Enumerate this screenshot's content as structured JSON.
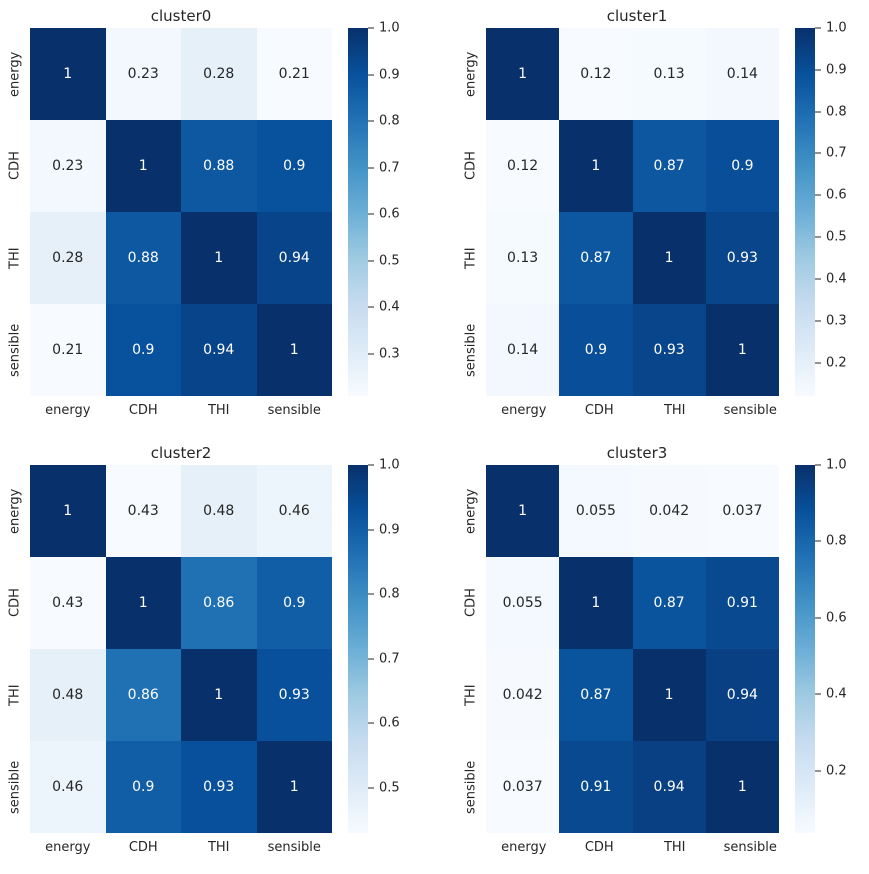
{
  "page": {
    "background": "#ffffff",
    "figure_width": 869,
    "figure_height": 874
  },
  "colors": {
    "colormap": "Blues",
    "blues_stops": [
      "#f7fbff",
      "#deebf7",
      "#c6dbef",
      "#9ecae1",
      "#6baed6",
      "#4292c6",
      "#2171b5",
      "#08519c",
      "#08306b"
    ],
    "annotation_on_dark": "#ffffff",
    "annotation_on_light": "#262626",
    "axis_text": "#262626"
  },
  "chart_data": [
    {
      "type": "heatmap",
      "title": "cluster0",
      "x_categories": [
        "energy",
        "CDH",
        "THI",
        "sensible"
      ],
      "y_categories": [
        "energy",
        "CDH",
        "THI",
        "sensible"
      ],
      "matrix": [
        [
          1,
          0.23,
          0.28,
          0.21
        ],
        [
          0.23,
          1,
          0.88,
          0.9
        ],
        [
          0.28,
          0.88,
          1,
          0.94
        ],
        [
          0.21,
          0.9,
          0.94,
          1
        ]
      ],
      "vmin": 0.21,
      "vmax": 1.0,
      "colorbar_ticks": [
        "1.0",
        "0.9",
        "0.8",
        "0.7",
        "0.6",
        "0.5",
        "0.4",
        "0.3"
      ],
      "colorbar_position": "right",
      "grid": false
    },
    {
      "type": "heatmap",
      "title": "cluster1",
      "x_categories": [
        "energy",
        "CDH",
        "THI",
        "sensible"
      ],
      "y_categories": [
        "energy",
        "CDH",
        "THI",
        "sensible"
      ],
      "matrix": [
        [
          1,
          0.12,
          0.13,
          0.14
        ],
        [
          0.12,
          1,
          0.87,
          0.9
        ],
        [
          0.13,
          0.87,
          1,
          0.93
        ],
        [
          0.14,
          0.9,
          0.93,
          1
        ]
      ],
      "vmin": 0.12,
      "vmax": 1.0,
      "colorbar_ticks": [
        "1.0",
        "0.9",
        "0.8",
        "0.7",
        "0.6",
        "0.5",
        "0.4",
        "0.3",
        "0.2"
      ],
      "colorbar_position": "right",
      "grid": false
    },
    {
      "type": "heatmap",
      "title": "cluster2",
      "x_categories": [
        "energy",
        "CDH",
        "THI",
        "sensible"
      ],
      "y_categories": [
        "energy",
        "CDH",
        "THI",
        "sensible"
      ],
      "matrix": [
        [
          1,
          0.43,
          0.48,
          0.46
        ],
        [
          0.43,
          1,
          0.86,
          0.9
        ],
        [
          0.48,
          0.86,
          1,
          0.93
        ],
        [
          0.46,
          0.9,
          0.93,
          1
        ]
      ],
      "vmin": 0.43,
      "vmax": 1.0,
      "colorbar_ticks": [
        "1.0",
        "0.9",
        "0.8",
        "0.7",
        "0.6",
        "0.5"
      ],
      "colorbar_position": "right",
      "grid": false
    },
    {
      "type": "heatmap",
      "title": "cluster3",
      "x_categories": [
        "energy",
        "CDH",
        "THI",
        "sensible"
      ],
      "y_categories": [
        "energy",
        "CDH",
        "THI",
        "sensible"
      ],
      "matrix": [
        [
          1,
          0.055,
          0.042,
          0.037
        ],
        [
          0.055,
          1,
          0.87,
          0.91
        ],
        [
          0.042,
          0.87,
          1,
          0.94
        ],
        [
          0.037,
          0.91,
          0.94,
          1
        ]
      ],
      "vmin": 0.037,
      "vmax": 1.0,
      "colorbar_ticks": [
        "1.0",
        "0.8",
        "0.6",
        "0.4",
        "0.2"
      ],
      "colorbar_position": "right",
      "grid": false
    }
  ]
}
